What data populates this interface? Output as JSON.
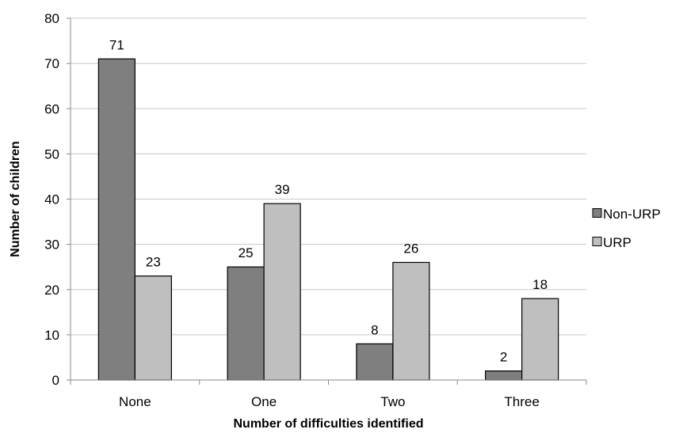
{
  "chart_data": {
    "type": "bar",
    "title": "",
    "xlabel": "Number of difficulties identified",
    "ylabel": "Number of children",
    "categories": [
      "None",
      "One",
      "Two",
      "Three"
    ],
    "series": [
      {
        "name": "Non-URP",
        "values": [
          71,
          25,
          8,
          2
        ],
        "color": "#7f7f7f"
      },
      {
        "name": "URP",
        "values": [
          23,
          39,
          26,
          18
        ],
        "color": "#bfbfbf"
      }
    ],
    "ylim": [
      0,
      80
    ],
    "yticks": [
      0,
      10,
      20,
      30,
      40,
      50,
      60,
      70,
      80
    ],
    "grid": true,
    "legend_position": "right",
    "data_labels": true
  }
}
